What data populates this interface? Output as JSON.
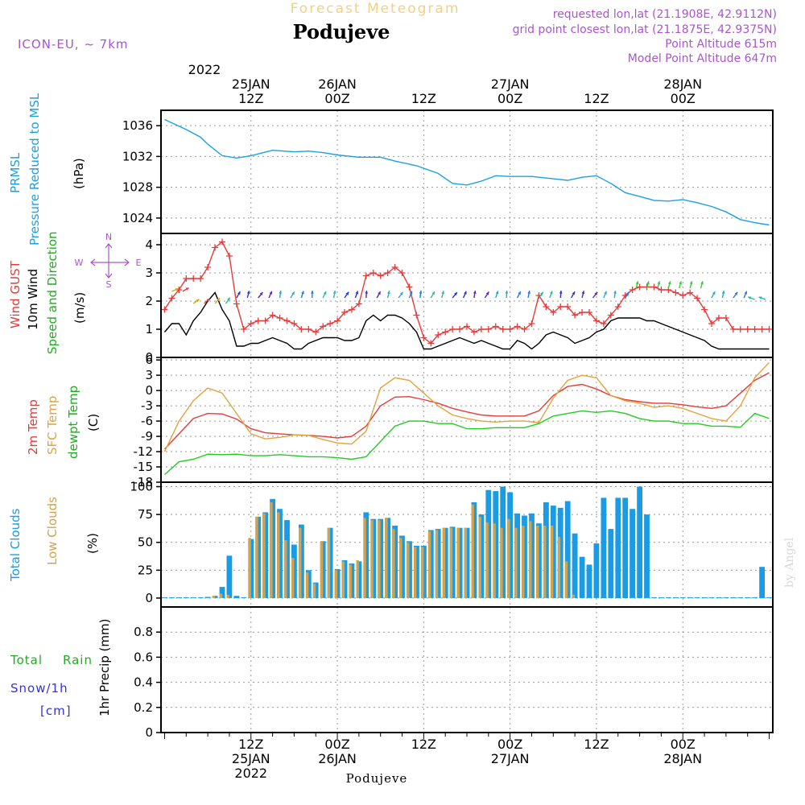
{
  "header": {
    "supertitle": "Forecast Meteogram",
    "title": "Podujeve",
    "model": "ICON-EU, ~ 7km",
    "requested": "requested lon,lat (21.1908E, 42.9112N)",
    "gridpoint": "grid point closest lon,lat (21.1875E, 42.9375N)",
    "point_altitude": "Point Altitude 615m",
    "model_altitude": "Model Point Altitude 647m",
    "credit": "by Angel",
    "footer": "Podujeve"
  },
  "time_axis": {
    "top_year": "2022",
    "labels": [
      {
        "h": 12,
        "line1": "25JAN",
        "line2": "12Z"
      },
      {
        "h": 24,
        "line1": "26JAN",
        "line2": "00Z"
      },
      {
        "h": 36,
        "line1": "",
        "line2": "12Z"
      },
      {
        "h": 48,
        "line1": "27JAN",
        "line2": "00Z"
      },
      {
        "h": 60,
        "line1": "",
        "line2": "12Z"
      },
      {
        "h": 72,
        "line1": "28JAN",
        "line2": "00Z"
      }
    ],
    "bottom": [
      {
        "h": 12,
        "top": "12Z",
        "mid": "25JAN",
        "bot": "2022"
      },
      {
        "h": 24,
        "top": "00Z",
        "mid": "26JAN",
        "bot": ""
      },
      {
        "h": 36,
        "top": "12Z",
        "mid": "",
        "bot": ""
      },
      {
        "h": 48,
        "top": "00Z",
        "mid": "27JAN",
        "bot": ""
      },
      {
        "h": 60,
        "top": "12Z",
        "mid": "",
        "bot": ""
      },
      {
        "h": 72,
        "top": "00Z",
        "mid": "28JAN",
        "bot": ""
      }
    ]
  },
  "colors": {
    "pressure": "#1aa0e6",
    "gust": "#e83a3a",
    "wind": "#000000",
    "direction": "#2eb82e",
    "temp2m": "#e83a3a",
    "sfc": "#e3a33a",
    "dewpt": "#22cc22",
    "total_clouds": "#1a9be6",
    "low_clouds": "#d2a24c",
    "rain": "#22aa22",
    "snow": "#3333dd",
    "purple": "#aa55cc"
  },
  "panels": {
    "pressure": {
      "label1": "PRMSL",
      "label2": "Pressure Reduced to MSL",
      "unit": "(hPa)"
    },
    "wind": {
      "label1": "Wind GUST",
      "label2": "10m Wind",
      "label3": "Speed and Direction",
      "unit": "(m/s)",
      "compass_n": "N",
      "compass_s": "S",
      "compass_w": "W",
      "compass_e": "E"
    },
    "temp": {
      "label1": "2m Temp",
      "label2": "SFC Temp",
      "label3": "dewpt Temp",
      "unit": "(C)"
    },
    "clouds": {
      "label1": "Total Clouds",
      "label2": "Low Clouds",
      "unit": "(%)"
    },
    "precip": {
      "label1": "Total",
      "label1b": "Rain",
      "label2": "Snow/1h",
      "label3": "[cm]",
      "unit": "1hr Precip (mm)"
    }
  },
  "chart_data": [
    {
      "type": "line",
      "title": "PRMSL Pressure Reduced to MSL",
      "ylabel": "(hPa)",
      "ylim": [
        1022,
        1038
      ],
      "yticks": [
        1024,
        1028,
        1032,
        1036
      ],
      "x_hours": [
        0,
        3,
        5,
        6,
        8,
        10,
        12,
        15,
        18,
        20,
        22,
        24,
        27,
        30,
        32,
        35,
        38,
        40,
        42,
        44,
        46,
        48,
        51,
        54,
        56,
        58,
        60,
        62,
        64,
        66,
        68,
        70,
        72,
        74,
        76,
        78,
        80,
        82,
        84
      ],
      "series": [
        {
          "name": "PRMSL",
          "values": [
            1036.8,
            1035.5,
            1034.5,
            1033.6,
            1032.1,
            1031.8,
            1032.1,
            1032.8,
            1032.6,
            1032.7,
            1032.5,
            1032.2,
            1031.9,
            1031.9,
            1031.4,
            1030.8,
            1029.8,
            1028.5,
            1028.3,
            1028.8,
            1029.5,
            1029.4,
            1029.4,
            1029.1,
            1028.9,
            1029.3,
            1029.5,
            1028.5,
            1027.3,
            1026.8,
            1026.3,
            1026.2,
            1026.4,
            1026.0,
            1025.5,
            1024.8,
            1023.8,
            1023.4,
            1023.1
          ]
        }
      ]
    },
    {
      "type": "line",
      "title": "Wind GUST / 10m Wind",
      "ylabel": "(m/s)",
      "ylim": [
        0,
        4.4
      ],
      "yticks": [
        0,
        1,
        2,
        3,
        4
      ],
      "x_hours": [
        0,
        1,
        2,
        3,
        4,
        5,
        6,
        7,
        8,
        9,
        10,
        11,
        12,
        13,
        14,
        15,
        16,
        17,
        18,
        19,
        20,
        21,
        22,
        23,
        24,
        25,
        26,
        27,
        28,
        29,
        30,
        31,
        32,
        33,
        34,
        35,
        36,
        37,
        38,
        39,
        40,
        41,
        42,
        43,
        44,
        45,
        46,
        47,
        48,
        49,
        50,
        51,
        52,
        53,
        54,
        55,
        56,
        57,
        58,
        59,
        60,
        61,
        62,
        63,
        64,
        65,
        66,
        67,
        68,
        69,
        70,
        71,
        72,
        73,
        74,
        75,
        76,
        77,
        78,
        79,
        80,
        81,
        82,
        83,
        84
      ],
      "series": [
        {
          "name": "Wind GUST",
          "values": [
            1.7,
            2.1,
            2.4,
            2.8,
            2.8,
            2.8,
            3.2,
            3.9,
            4.1,
            3.6,
            1.9,
            1.0,
            1.2,
            1.3,
            1.3,
            1.5,
            1.4,
            1.3,
            1.2,
            1.0,
            1.0,
            0.9,
            1.1,
            1.2,
            1.3,
            1.6,
            1.7,
            1.9,
            2.9,
            3.0,
            2.9,
            3.0,
            3.2,
            3.0,
            2.5,
            1.5,
            0.7,
            0.5,
            0.8,
            0.9,
            1.0,
            1.0,
            1.1,
            0.9,
            1.0,
            1.0,
            1.1,
            1.0,
            1.0,
            1.1,
            1.0,
            1.2,
            2.2,
            1.8,
            1.6,
            1.8,
            1.8,
            1.5,
            1.6,
            1.6,
            1.3,
            1.2,
            1.5,
            1.8,
            2.2,
            2.4,
            2.5,
            2.5,
            2.5,
            2.4,
            2.4,
            2.3,
            2.2,
            2.3,
            2.1,
            1.7,
            1.2,
            1.4,
            1.4,
            1.0,
            1.0,
            1.0,
            1.0,
            1.0,
            1.0
          ]
        },
        {
          "name": "10m Wind",
          "values": [
            0.9,
            1.2,
            1.2,
            0.8,
            1.3,
            1.6,
            2.0,
            2.3,
            1.7,
            1.3,
            0.4,
            0.4,
            0.5,
            0.5,
            0.6,
            0.7,
            0.6,
            0.5,
            0.3,
            0.3,
            0.5,
            0.6,
            0.7,
            0.7,
            0.7,
            0.6,
            0.6,
            0.7,
            1.3,
            1.5,
            1.3,
            1.5,
            1.5,
            1.4,
            1.2,
            0.9,
            0.3,
            0.3,
            0.4,
            0.5,
            0.6,
            0.7,
            0.6,
            0.5,
            0.6,
            0.5,
            0.4,
            0.3,
            0.3,
            0.6,
            0.5,
            0.3,
            0.5,
            0.8,
            0.9,
            0.8,
            0.7,
            0.5,
            0.6,
            0.7,
            0.9,
            1.0,
            1.3,
            1.4,
            1.4,
            1.4,
            1.4,
            1.3,
            1.3,
            1.2,
            1.1,
            1.0,
            0.9,
            0.8,
            0.7,
            0.6,
            0.4,
            0.3,
            0.3,
            0.3,
            0.3,
            0.3,
            0.3,
            0.3,
            0.3
          ]
        }
      ]
    },
    {
      "type": "line",
      "title": "2m Temp / SFC Temp / dewpt Temp",
      "ylabel": "(C)",
      "ylim": [
        -18,
        6.5
      ],
      "yticks": [
        -18,
        -15,
        -12,
        -9,
        -6,
        -3,
        0,
        3,
        6
      ],
      "x_hours": [
        0,
        2,
        4,
        6,
        8,
        10,
        12,
        14,
        16,
        18,
        20,
        22,
        24,
        26,
        28,
        30,
        32,
        34,
        36,
        38,
        40,
        42,
        44,
        46,
        48,
        50,
        52,
        54,
        56,
        58,
        60,
        62,
        64,
        66,
        68,
        70,
        72,
        74,
        76,
        78,
        80,
        82,
        84
      ],
      "series": [
        {
          "name": "2m Temp",
          "values": [
            -11.5,
            -8.5,
            -5.5,
            -4.5,
            -4.6,
            -5.6,
            -7.5,
            -8.3,
            -8.5,
            -8.7,
            -8.8,
            -9.0,
            -9.3,
            -9.0,
            -7.0,
            -3.0,
            -1.3,
            -1.2,
            -1.8,
            -2.5,
            -3.5,
            -4.2,
            -4.8,
            -5.0,
            -5.0,
            -5.0,
            -4.0,
            -1.0,
            0.8,
            1.2,
            0.3,
            -1.0,
            -1.8,
            -2.2,
            -2.5,
            -2.5,
            -2.8,
            -3.2,
            -3.5,
            -3.0,
            -0.5,
            2.0,
            3.5
          ]
        },
        {
          "name": "SFC Temp",
          "values": [
            -12.0,
            -6.0,
            -2.0,
            0.5,
            -0.5,
            -4.5,
            -8.5,
            -9.5,
            -9.2,
            -8.7,
            -8.8,
            -9.6,
            -10.3,
            -10.5,
            -8.0,
            0.5,
            2.5,
            2.0,
            -0.5,
            -3.0,
            -4.8,
            -5.5,
            -6.0,
            -6.2,
            -6.0,
            -6.0,
            -6.3,
            -1.5,
            2.0,
            3.0,
            2.5,
            -1.0,
            -2.0,
            -2.5,
            -3.3,
            -3.0,
            -3.5,
            -4.5,
            -5.5,
            -6.0,
            -3.0,
            2.5,
            5.5
          ]
        },
        {
          "name": "dewpt Temp",
          "values": [
            -16.5,
            -14.0,
            -13.5,
            -12.5,
            -12.6,
            -12.5,
            -12.8,
            -12.8,
            -12.6,
            -12.8,
            -13.0,
            -13.0,
            -13.2,
            -13.5,
            -13.0,
            -10.0,
            -7.0,
            -6.0,
            -6.0,
            -6.5,
            -6.5,
            -7.5,
            -7.5,
            -7.3,
            -7.3,
            -7.3,
            -6.5,
            -5.0,
            -4.5,
            -4.0,
            -4.3,
            -4.0,
            -4.5,
            -5.5,
            -6.0,
            -6.0,
            -6.5,
            -6.5,
            -7.0,
            -7.0,
            -7.2,
            -4.5,
            -5.5
          ]
        }
      ]
    },
    {
      "type": "bar",
      "title": "Total Clouds / Low Clouds",
      "ylabel": "(%)",
      "ylim": [
        -8,
        104
      ],
      "yticks": [
        0,
        25,
        50,
        75,
        100
      ],
      "x_hours": [
        0,
        1,
        2,
        3,
        4,
        5,
        6,
        7,
        8,
        9,
        10,
        11,
        12,
        13,
        14,
        15,
        16,
        17,
        18,
        19,
        20,
        21,
        22,
        23,
        24,
        25,
        26,
        27,
        28,
        29,
        30,
        31,
        32,
        33,
        34,
        35,
        36,
        37,
        38,
        39,
        40,
        41,
        42,
        43,
        44,
        45,
        46,
        47,
        48,
        49,
        50,
        51,
        52,
        53,
        54,
        55,
        56,
        57,
        58,
        59,
        60,
        61,
        62,
        63,
        64,
        65,
        66,
        67,
        68,
        69,
        70,
        71,
        72,
        73,
        74,
        75,
        76,
        77,
        78,
        79,
        80,
        81,
        82,
        83,
        84
      ],
      "series": [
        {
          "name": "Total Clouds",
          "values": [
            0,
            0,
            0,
            0,
            0,
            0,
            1,
            2,
            10,
            38,
            2,
            0,
            53,
            73,
            77,
            89,
            80,
            70,
            48,
            66,
            25,
            14,
            51,
            63,
            26,
            34,
            31,
            33,
            77,
            71,
            71,
            72,
            65,
            56,
            51,
            47,
            47,
            61,
            62,
            63,
            64,
            63,
            63,
            86,
            75,
            97,
            96,
            100,
            95,
            76,
            74,
            76,
            67,
            86,
            83,
            81,
            87,
            58,
            37,
            30,
            49,
            90,
            62,
            90,
            90,
            80,
            100,
            75,
            0,
            0,
            0,
            0,
            0,
            0,
            0,
            0,
            0,
            0,
            0,
            0,
            0,
            0,
            0,
            28,
            0
          ]
        },
        {
          "name": "Low Clouds",
          "values": [
            0,
            0,
            0,
            0,
            0,
            0,
            0,
            2,
            4,
            3,
            0,
            0,
            54,
            73,
            76,
            86,
            77,
            52,
            36,
            63,
            23,
            13,
            51,
            63,
            25,
            33,
            30,
            34,
            72,
            70,
            70,
            72,
            62,
            54,
            50,
            46,
            46,
            60,
            61,
            63,
            63,
            63,
            63,
            84,
            73,
            68,
            67,
            63,
            71,
            63,
            65,
            69,
            65,
            65,
            65,
            55,
            33,
            3,
            0,
            0,
            0,
            0,
            0,
            0,
            0,
            0,
            0,
            0,
            0,
            0,
            0,
            0,
            0,
            0,
            0,
            0,
            0,
            0,
            0,
            0,
            0,
            0,
            0,
            0,
            0
          ]
        }
      ]
    },
    {
      "type": "bar",
      "title": "1hr Precip",
      "ylabel": "1hr Precip (mm)",
      "ylim": [
        0,
        1.0
      ],
      "yticks": [
        0,
        0.2,
        0.4,
        0.6,
        0.8
      ],
      "x_hours": [],
      "series": []
    }
  ]
}
